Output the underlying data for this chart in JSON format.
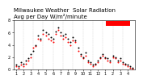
{
  "title_line1": "Milwaukee Weather  Solar Radiation",
  "title_line2": "Avg per Day W/m²/minute",
  "background_color": "#ffffff",
  "plot_bg_color": "#ffffff",
  "grid_color": "#cccccc",
  "x_values": [
    0,
    1,
    2,
    3,
    4,
    5,
    6,
    7,
    8,
    9,
    10,
    11,
    12,
    13,
    14,
    15,
    16,
    17,
    18,
    19,
    20,
    21,
    22,
    23,
    24,
    25,
    26,
    27,
    28,
    29,
    30,
    31,
    32,
    33,
    34,
    35,
    36,
    37,
    38,
    39,
    40,
    41,
    42,
    43,
    44,
    45,
    46,
    47
  ],
  "black_y": [
    0.8,
    0.5,
    1.2,
    1.0,
    1.5,
    1.8,
    2.5,
    3.0,
    4.0,
    5.5,
    5.0,
    6.5,
    6.0,
    5.8,
    5.2,
    5.0,
    6.2,
    6.8,
    6.0,
    5.5,
    5.8,
    5.0,
    4.5,
    5.2,
    4.8,
    3.5,
    2.5,
    2.0,
    2.8,
    1.5,
    1.2,
    0.8,
    1.0,
    1.5,
    2.0,
    2.5,
    2.0,
    1.8,
    1.5,
    2.2,
    2.0,
    1.5,
    1.8,
    1.2,
    1.0,
    0.8,
    0.5,
    0.3
  ],
  "red_y": [
    0.5,
    0.3,
    0.8,
    0.6,
    1.0,
    1.5,
    2.0,
    3.5,
    3.8,
    5.0,
    4.8,
    5.8,
    5.5,
    5.0,
    4.8,
    4.5,
    5.8,
    6.5,
    5.5,
    5.0,
    5.2,
    4.5,
    4.0,
    4.8,
    4.5,
    3.0,
    2.2,
    1.8,
    2.2,
    1.2,
    1.0,
    0.5,
    0.8,
    1.2,
    1.8,
    2.2,
    1.8,
    1.5,
    1.2,
    2.0,
    1.8,
    1.2,
    1.5,
    1.0,
    0.8,
    0.5,
    0.3,
    0.2
  ],
  "ylim": [
    0,
    8
  ],
  "xlim": [
    -1,
    48
  ],
  "ylabel_ticks": [
    0,
    2,
    4,
    6,
    8
  ],
  "grid_positions": [
    3,
    7,
    11,
    15,
    19,
    23,
    27,
    31,
    35,
    39,
    43
  ],
  "x_tick_positions": [
    0,
    3,
    6,
    9,
    12,
    15,
    18,
    21,
    24,
    27,
    30,
    33,
    36,
    39,
    42,
    45
  ],
  "x_tick_labels": [
    "1",
    "2",
    "3",
    "4",
    "5",
    "6",
    "7",
    "8",
    "9",
    "10",
    "11",
    "12",
    "1",
    "2",
    "3",
    "4"
  ],
  "legend_rect_color": "#ff0000",
  "black_color": "#000000",
  "red_color": "#ff0000",
  "marker_size": 2.0,
  "title_fontsize": 5.0,
  "tick_fontsize": 3.5,
  "ytick_fontsize": 3.5
}
